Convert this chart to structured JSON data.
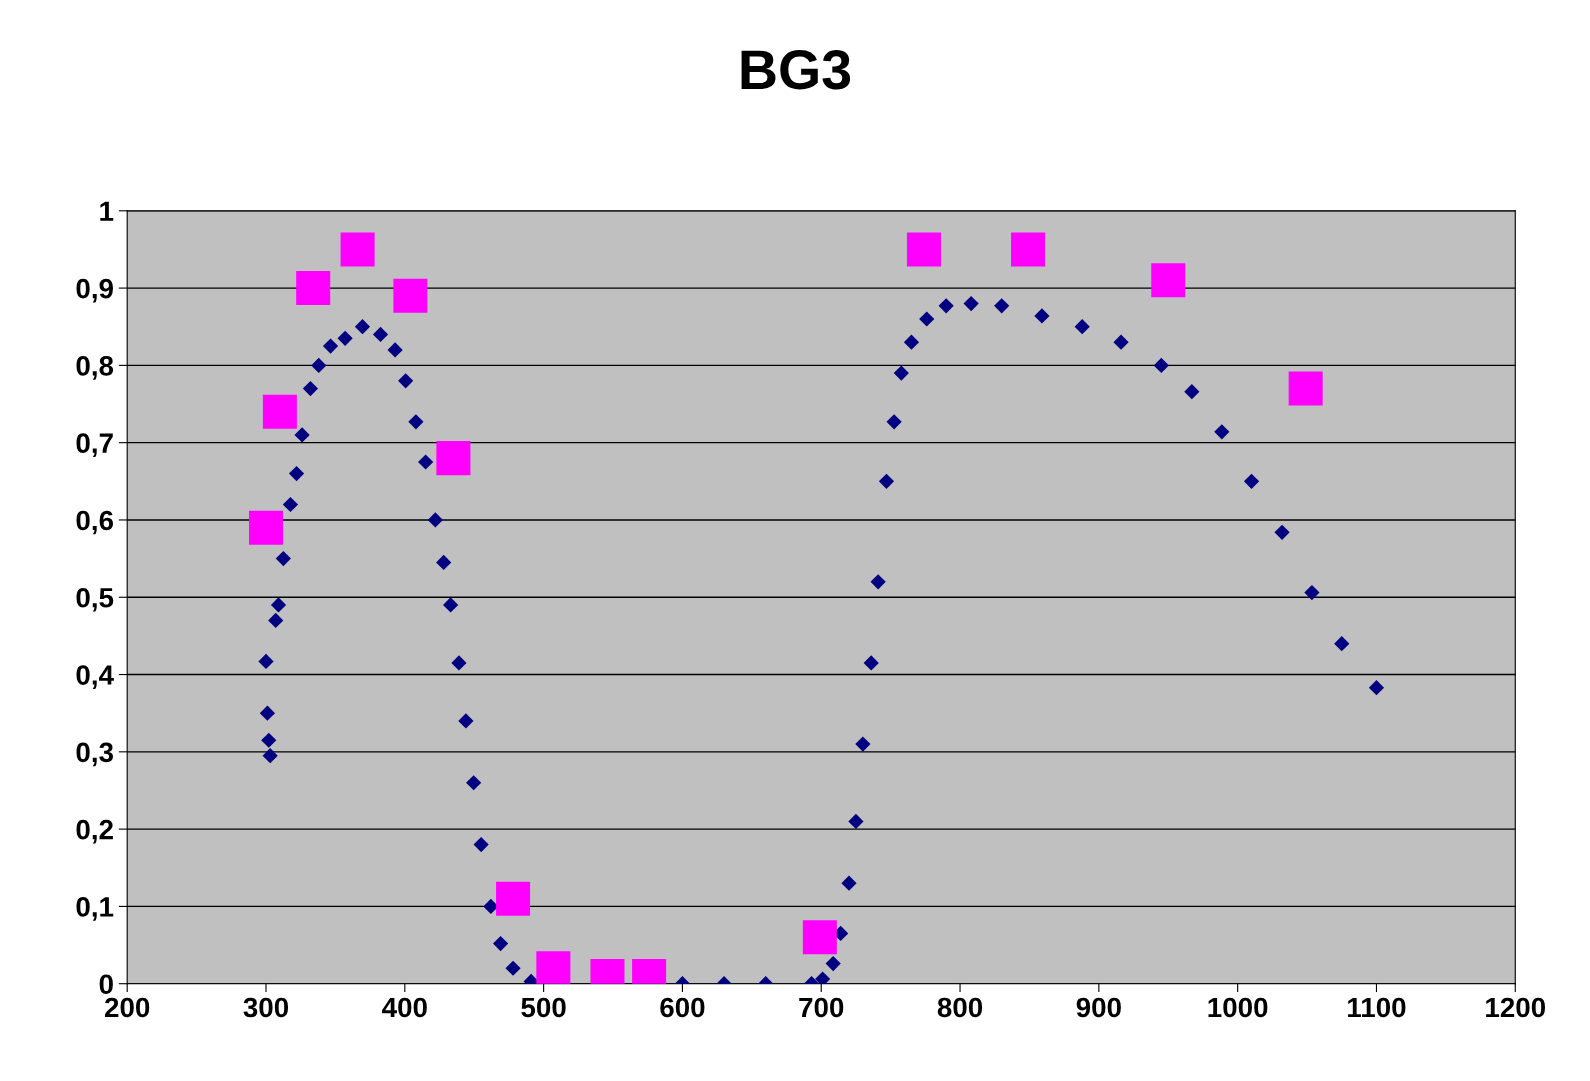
{
  "chart_data": {
    "type": "scatter",
    "title": "BG3",
    "series": [
      {
        "color": "#000080",
        "marker": "diamond",
        "x": [
          300,
          301,
          302,
          303,
          307,
          309,
          312.5,
          317.6,
          322,
          326,
          332,
          338,
          346.5,
          357,
          369.5,
          382.5,
          393,
          400.6,
          408,
          415,
          422,
          428,
          433,
          439,
          444,
          449.6,
          455,
          462,
          469,
          478,
          491,
          512,
          540,
          570,
          600,
          630,
          660,
          693,
          701,
          708.6,
          714,
          720,
          725,
          730,
          736,
          741,
          747,
          752.5,
          757.7,
          765,
          776,
          790,
          808,
          830,
          859,
          888,
          916,
          945,
          967,
          988.6,
          1010,
          1032,
          1053.5,
          1075,
          1100
        ],
        "values": [
          0.417,
          0.35,
          0.315,
          0.295,
          0.47,
          0.49,
          0.55,
          0.62,
          0.66,
          0.71,
          0.77,
          0.8,
          0.825,
          0.835,
          0.85,
          0.84,
          0.82,
          0.78,
          0.727,
          0.675,
          0.6,
          0.545,
          0.49,
          0.415,
          0.34,
          0.26,
          0.18,
          0.1,
          0.052,
          0.02,
          0.003,
          0,
          0,
          0,
          0,
          0,
          0,
          0,
          0.006,
          0.026,
          0.065,
          0.13,
          0.21,
          0.31,
          0.415,
          0.52,
          0.65,
          0.727,
          0.79,
          0.83,
          0.86,
          0.877,
          0.88,
          0.877,
          0.864,
          0.85,
          0.83,
          0.8,
          0.766,
          0.714,
          0.65,
          0.584,
          0.506,
          0.44,
          0.383
        ]
      },
      {
        "color": "#ff00ff",
        "marker": "square",
        "x": [
          300,
          310,
          334,
          366,
          404,
          435,
          478,
          507,
          546,
          576,
          699,
          774,
          849,
          950,
          1049
        ],
        "values": [
          0.59,
          0.74,
          0.9,
          0.95,
          0.89,
          0.68,
          0.11,
          0.02,
          0.01,
          0.01,
          0.06,
          0.95,
          0.95,
          0.91,
          0.77
        ]
      }
    ],
    "xlim": [
      200,
      1200
    ],
    "xticks": [
      200,
      300,
      400,
      500,
      600,
      700,
      800,
      900,
      1000,
      1100,
      1200
    ],
    "ylim": [
      0,
      1
    ],
    "yticks": [
      0,
      {
        "value": 0.1,
        "label": "0,1"
      },
      {
        "value": 0.2,
        "label": "0,2"
      },
      {
        "value": 0.3,
        "label": "0,3"
      },
      {
        "value": 0.4,
        "label": "0,4"
      },
      {
        "value": 0.5,
        "label": "0,5"
      },
      {
        "value": 0.6,
        "label": "0,6"
      },
      {
        "value": 0.7,
        "label": "0,7"
      },
      {
        "value": 0.8,
        "label": "0,8"
      },
      {
        "value": 0.9,
        "label": "0,9"
      },
      1
    ],
    "grid": "y",
    "legend": false
  }
}
